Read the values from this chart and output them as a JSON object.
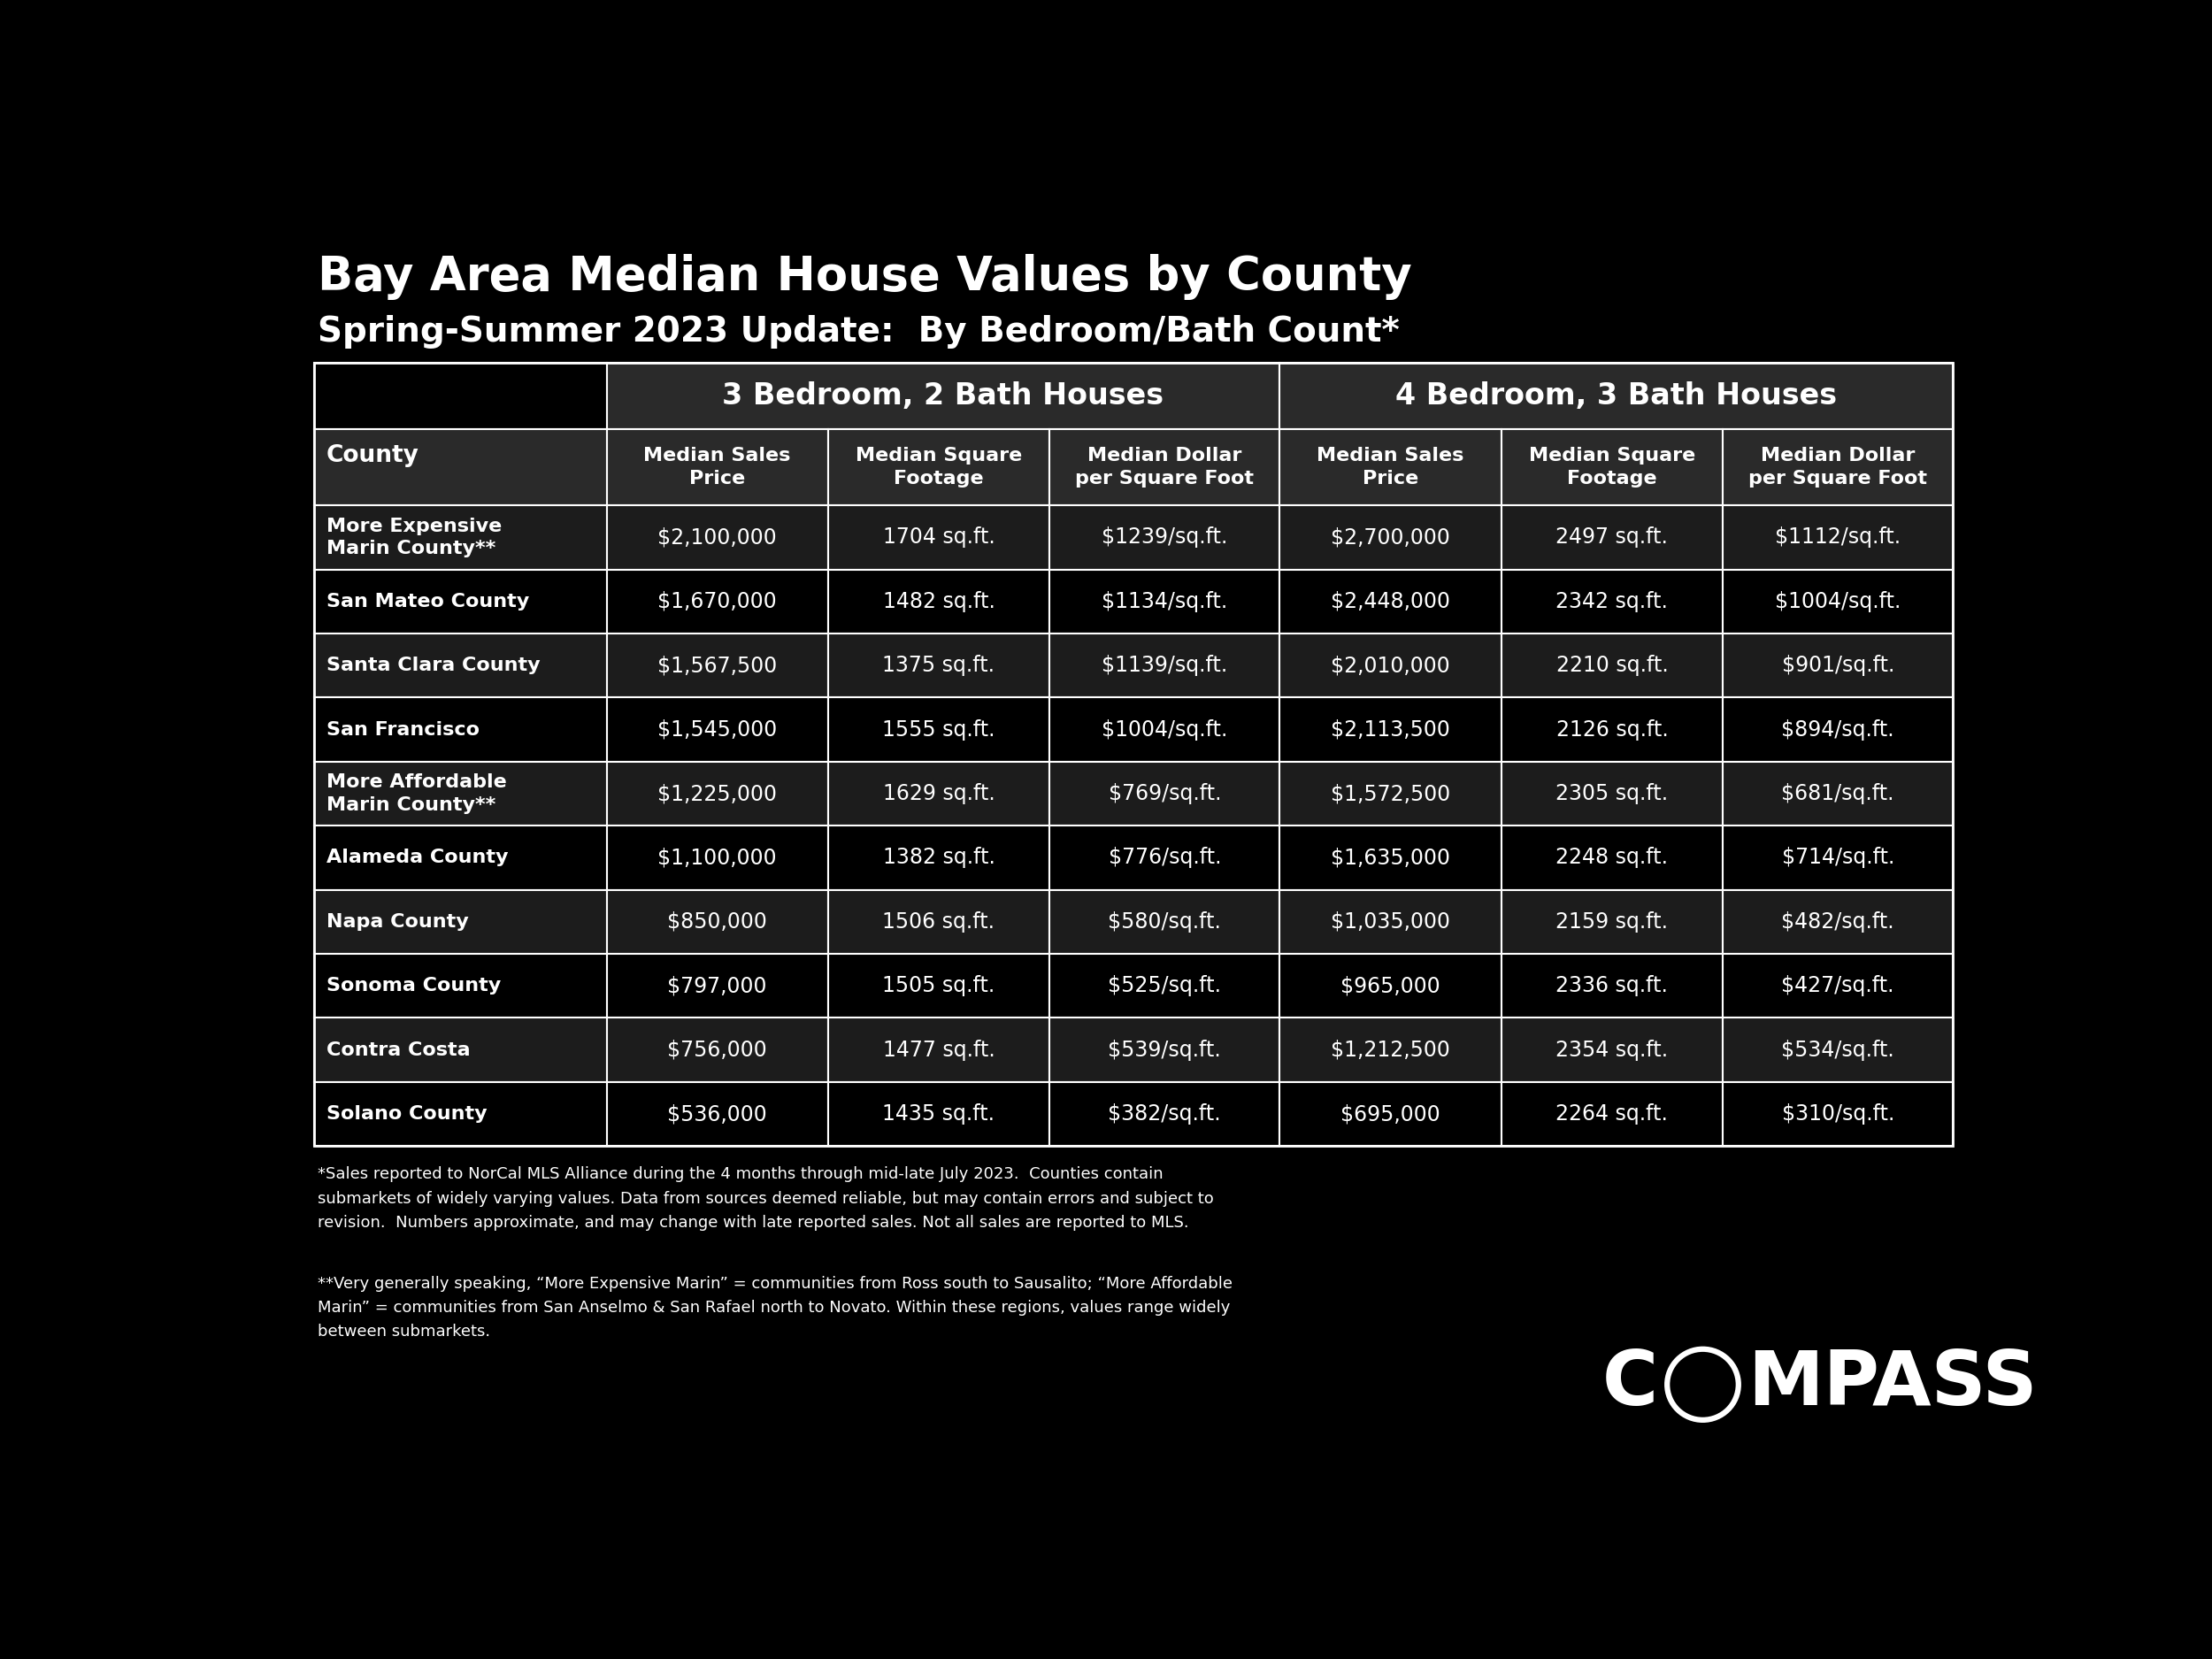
{
  "title_line1": "Bay Area Median House Values by County",
  "title_line2": "Spring-Summer 2023 Update:  By Bedroom/Bath Count*",
  "background_color": "#000000",
  "table_bg_dark": "#1a1a1a",
  "table_bg_header": "#2a2a2a",
  "table_border_color": "#ffffff",
  "text_color": "#ffffff",
  "col_group1": "3 Bedroom, 2 Bath Houses",
  "col_group2": "4 Bedroom, 3 Bath Houses",
  "col_headers": [
    "County",
    "Median Sales\nPrice",
    "Median Square\nFootage",
    "Median Dollar\nper Square Foot",
    "Median Sales\nPrice",
    "Median Square\nFootage",
    "Median Dollar\nper Square Foot"
  ],
  "rows": [
    [
      "More Expensive\nMarin County**",
      "$2,100,000",
      "1704 sq.ft.",
      "$1239/sq.ft.",
      "$2,700,000",
      "2497 sq.ft.",
      "$1112/sq.ft."
    ],
    [
      "San Mateo County",
      "$1,670,000",
      "1482 sq.ft.",
      "$1134/sq.ft.",
      "$2,448,000",
      "2342 sq.ft.",
      "$1004/sq.ft."
    ],
    [
      "Santa Clara County",
      "$1,567,500",
      "1375 sq.ft.",
      "$1139/sq.ft.",
      "$2,010,000",
      "2210 sq.ft.",
      "$901/sq.ft."
    ],
    [
      "San Francisco",
      "$1,545,000",
      "1555 sq.ft.",
      "$1004/sq.ft.",
      "$2,113,500",
      "2126 sq.ft.",
      "$894/sq.ft."
    ],
    [
      "More Affordable\nMarin County**",
      "$1,225,000",
      "1629 sq.ft.",
      "$769/sq.ft.",
      "$1,572,500",
      "2305 sq.ft.",
      "$681/sq.ft."
    ],
    [
      "Alameda County",
      "$1,100,000",
      "1382 sq.ft.",
      "$776/sq.ft.",
      "$1,635,000",
      "2248 sq.ft.",
      "$714/sq.ft."
    ],
    [
      "Napa County",
      "$850,000",
      "1506 sq.ft.",
      "$580/sq.ft.",
      "$1,035,000",
      "2159 sq.ft.",
      "$482/sq.ft."
    ],
    [
      "Sonoma County",
      "$797,000",
      "1505 sq.ft.",
      "$525/sq.ft.",
      "$965,000",
      "2336 sq.ft.",
      "$427/sq.ft."
    ],
    [
      "Contra Costa",
      "$756,000",
      "1477 sq.ft.",
      "$539/sq.ft.",
      "$1,212,500",
      "2354 sq.ft.",
      "$534/sq.ft."
    ],
    [
      "Solano County",
      "$536,000",
      "1435 sq.ft.",
      "$382/sq.ft.",
      "$695,000",
      "2264 sq.ft.",
      "$310/sq.ft."
    ]
  ],
  "footnote1": "*Sales reported to NorCal MLS Alliance during the 4 months through mid-late July 2023.  Counties contain\nsubmarkets of widely varying values. Data from sources deemed reliable, but may contain errors and subject to\nrevision.  Numbers approximate, and may change with late reported sales. Not all sales are reported to MLS.",
  "footnote2": "**Very generally speaking, “More Expensive Marin” = communities from Ross south to Sausalito; “More Affordable\nMarin” = communities from San Anselmo & San Rafael north to Novato. Within these regions, values range widely\nbetween submarkets."
}
